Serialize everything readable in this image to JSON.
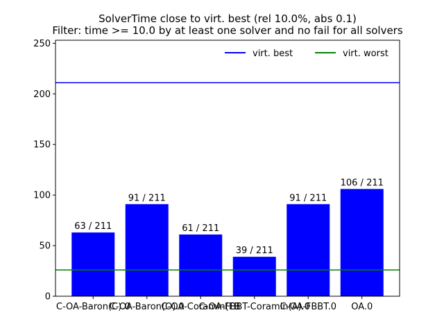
{
  "chart_data": {
    "type": "bar",
    "title": "SolverTime close to virt. best (rel 10.0%, abs 0.1)",
    "subtitle": "Filter: time >= 10.0 by at least one solver and no fail for all solvers",
    "categories": [
      "C-OA-Baron(C).0",
      "C-OA-Baron(O).0",
      "C-OA-Coramin(FB",
      "C-OA-FBBT-Coramin(A).0",
      "C-OA-FBBT.0",
      "OA.0"
    ],
    "values": [
      63,
      91,
      61,
      39,
      91,
      106
    ],
    "value_labels": [
      "63 / 211",
      "91 / 211",
      "61 / 211",
      "39 / 211",
      "91 / 211",
      "106 / 211"
    ],
    "ylim": [
      0,
      253
    ],
    "yticks": [
      0,
      50,
      100,
      150,
      200,
      250
    ],
    "bar_color": "#0000ff",
    "reference_lines": [
      {
        "name": "virt. best",
        "value": 211,
        "color": "#0000ff"
      },
      {
        "name": "virt. worst",
        "value": 26,
        "color": "#008000"
      }
    ],
    "legend_position": "top-right",
    "grid": false
  }
}
